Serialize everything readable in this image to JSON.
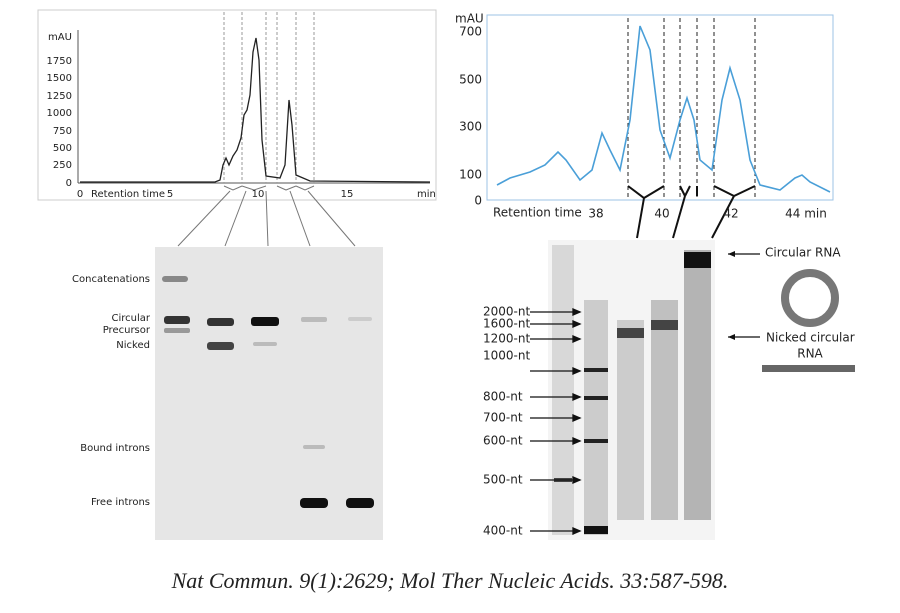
{
  "left_chromatogram": {
    "y_axis_label": "mAU",
    "y_ticks": [
      "0",
      "250",
      "500",
      "750",
      "1000",
      "1250",
      "1500",
      "1750"
    ],
    "x_ticks": [
      "0",
      "5",
      "10",
      "15"
    ],
    "x_axis_label": "Retention time",
    "x_unit": "min"
  },
  "left_gel": {
    "band_labels": [
      "Concatenations",
      "Circular",
      "Precursor",
      "Nicked",
      "Bound introns",
      "Free introns"
    ]
  },
  "right_chromatogram": {
    "y_axis_label": "mAU",
    "y_ticks": [
      "700",
      "500",
      "300",
      "100",
      "0"
    ],
    "x_axis_label": "Retention time",
    "x_ticks": [
      "38",
      "40",
      "42",
      "44 min"
    ]
  },
  "right_gel": {
    "ladder_labels": [
      "2000-nt",
      "1600-nt",
      "1200-nt",
      "1000-nt",
      "800-nt",
      "700-nt",
      "600-nt",
      "500-nt",
      "400-nt"
    ],
    "annotations": [
      "Circular RNA",
      "Nicked circular",
      "RNA"
    ]
  },
  "caption": "Nat Commun. 9(1):2629; Mol Ther Nucleic Acids. 33:587-598."
}
